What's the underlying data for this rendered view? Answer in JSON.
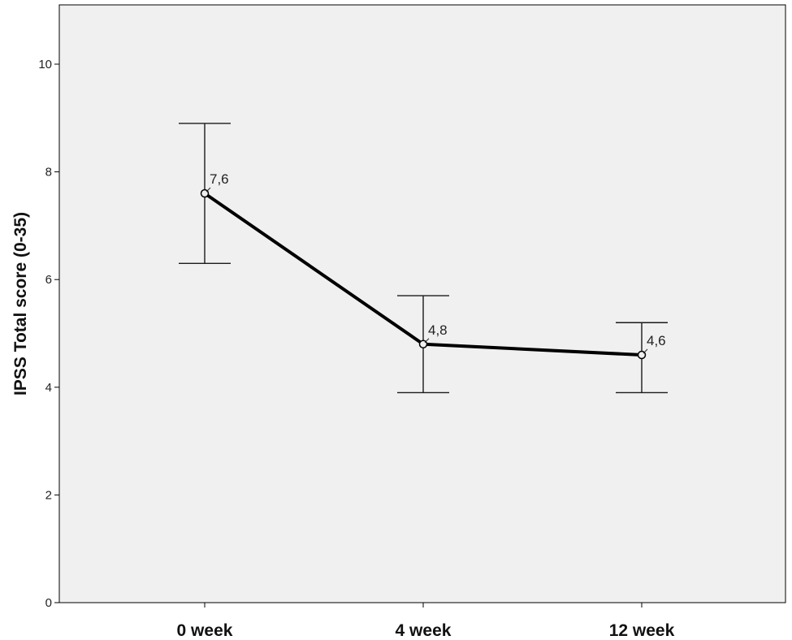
{
  "chart_data": {
    "type": "line",
    "categories": [
      "0 week",
      "4 week",
      "12 week"
    ],
    "series": [
      {
        "values": [
          7.6,
          4.8,
          4.6
        ],
        "error_upper": [
          8.9,
          5.7,
          5.2
        ],
        "error_lower": [
          6.3,
          3.9,
          3.9
        ],
        "data_labels": [
          "7,6",
          "4,8",
          "4,6"
        ]
      }
    ],
    "title": "",
    "xlabel": "",
    "ylabel": "IPSS Total score (0-35)",
    "ylim": [
      0,
      11
    ],
    "yticks": [
      0,
      2,
      4,
      6,
      8,
      10
    ],
    "grid": false,
    "legend": "none",
    "colors": {
      "plot_background": "#f0f0f0",
      "line": "#000000",
      "error_bar": "#1a1a1a",
      "axis": "#000000"
    }
  }
}
